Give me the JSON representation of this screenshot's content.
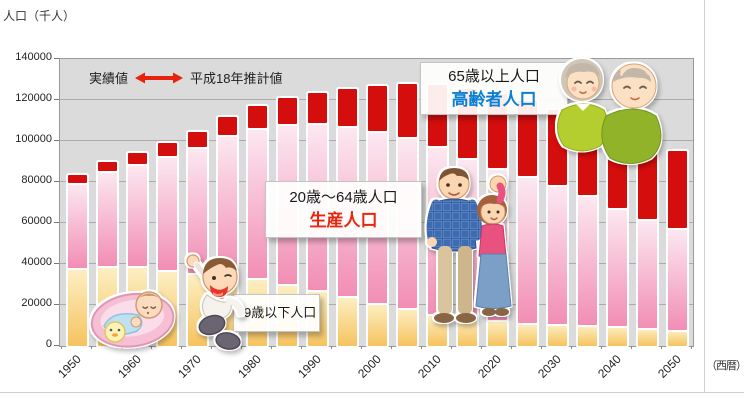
{
  "page": {
    "y_axis_title": "人口（千人）",
    "x_axis_unit": "（西暦）"
  },
  "legend": {
    "actual_label": "実績値",
    "projected_label": "平成18年推計値",
    "arrow_icon": "red-double-arrow"
  },
  "annotations": {
    "under20": {
      "line1": "19歳以下人口"
    },
    "working": {
      "line1": "20歳～64歳人口",
      "line2": "生産人口"
    },
    "elderly": {
      "line1": "65歳以上人口",
      "line2": "高齢者人口"
    }
  },
  "y_ticks": [
    "140000",
    "120000",
    "100000",
    "80000",
    "60000",
    "40000",
    "20000",
    "0"
  ],
  "x_tick_labels": [
    "1950",
    "1960",
    "1970",
    "1980",
    "1990",
    "2000",
    "2010",
    "2020",
    "2030",
    "2040",
    "2050"
  ],
  "chart_data": {
    "type": "bar",
    "stacked": true,
    "title": "",
    "xlabel": "西暦",
    "ylabel": "人口（千人）",
    "ylim": [
      0,
      140000
    ],
    "grid": true,
    "gridline_interval": 20000,
    "legend_position": "top-left-inside",
    "categories": [
      1950,
      1955,
      1960,
      1965,
      1970,
      1975,
      1980,
      1985,
      1990,
      1995,
      2000,
      2005,
      2010,
      2015,
      2020,
      2025,
      2030,
      2035,
      2040,
      2045,
      2050
    ],
    "series": [
      {
        "name": "19歳以下人口",
        "values": [
          38000,
          38900,
          39000,
          37200,
          35800,
          35000,
          33000,
          30200,
          27500,
          24500,
          21000,
          18400,
          15500,
          14000,
          12600,
          11300,
          10700,
          10200,
          9800,
          8800,
          7900
        ]
      },
      {
        "name": "20歳～64歳人口（生産人口）",
        "values": [
          41400,
          46300,
          49900,
          55400,
          61200,
          68000,
          73500,
          78300,
          81200,
          82800,
          83900,
          83700,
          82300,
          77600,
          74000,
          71600,
          67800,
          63300,
          57400,
          53200,
          49700
        ]
      },
      {
        "name": "65歳以上人口（高齢者人口）",
        "values": [
          4100,
          4700,
          5400,
          6200,
          7300,
          8900,
          10600,
          12500,
          14900,
          18300,
          22000,
          25700,
          29400,
          33800,
          36100,
          36400,
          36700,
          37200,
          38500,
          38400,
          37600
        ]
      }
    ],
    "totals": [
      83500,
      89900,
      94300,
      98800,
      104300,
      111900,
      117100,
      121000,
      123600,
      125600,
      126900,
      127800,
      127200,
      125400,
      122700,
      119300,
      115200,
      110700,
      105700,
      100400,
      95200
    ],
    "notes": "実績値（左側）と平成18年推計値（右側）の境界を赤い両矢印で示す"
  },
  "colors": {
    "red_segment": "#d40d0d",
    "pink_top": "#fcE9f1",
    "pink_bottom": "#f28eb4",
    "pink_border": "#e57ba3",
    "yellow_top": "#fdf0c5",
    "yellow_bottom": "#f6c35f",
    "yellow_border": "#dfa045",
    "plot_bg": "#dbdbdb",
    "gridline": "#ababab",
    "working_label_red": "#e8250d",
    "elderly_label_blue": "#0b7fd4",
    "arrow_red": "#e8230d"
  }
}
